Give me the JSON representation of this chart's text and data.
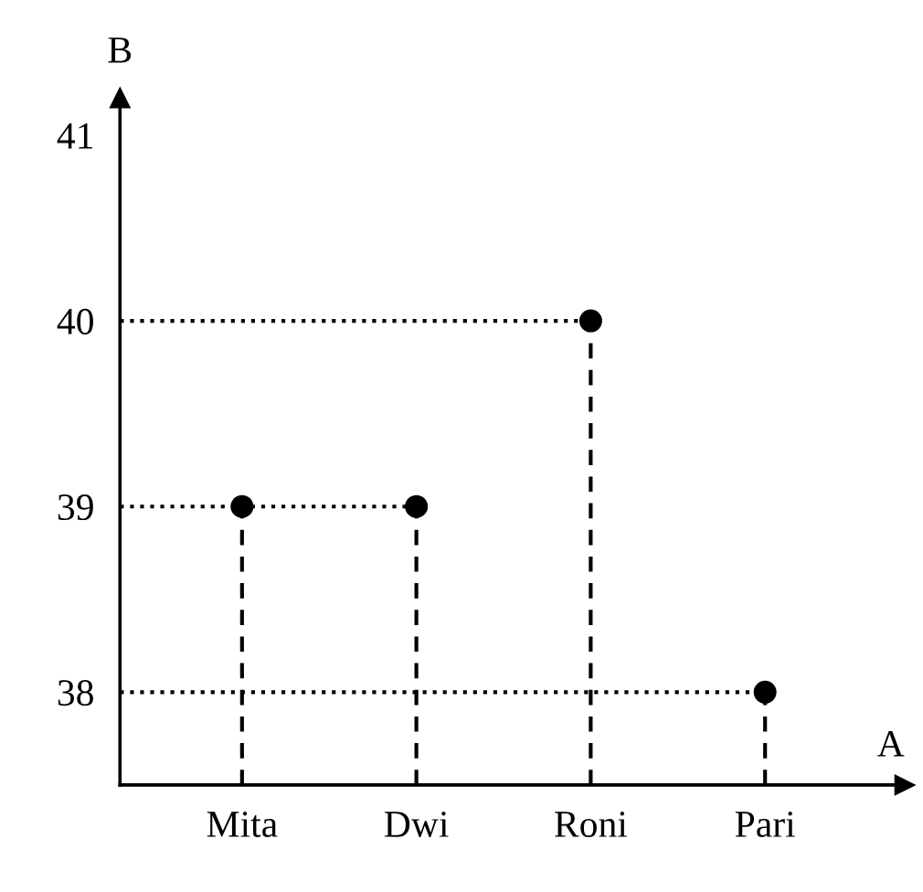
{
  "chart_data": {
    "type": "lollipop",
    "xlabel": "A",
    "ylabel": "B",
    "categories": [
      "Mita",
      "Dwi",
      "Roni",
      "Pari"
    ],
    "values": [
      39,
      39,
      40,
      38
    ],
    "color": "#000000",
    "marker": "circle",
    "line_style": "dashed",
    "ref_lines": [
      {
        "axis": "y",
        "value": 40,
        "line_style": "dotted",
        "color": "#000000"
      },
      {
        "axis": "y",
        "value": 39,
        "line_style": "dotted",
        "color": "#000000"
      },
      {
        "axis": "y",
        "value": 38,
        "line_style": "dotted",
        "color": "#000000"
      }
    ],
    "ylim": [
      37.5,
      41.2
    ],
    "yticks": [
      38,
      39,
      40,
      41
    ]
  }
}
